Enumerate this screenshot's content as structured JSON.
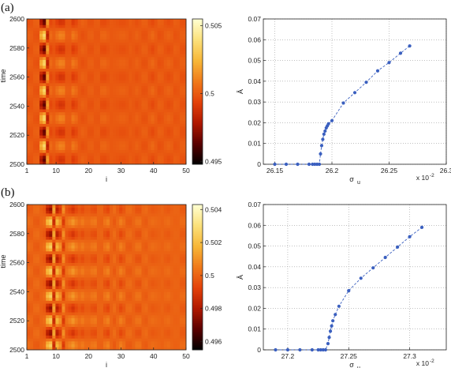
{
  "panel_labels": [
    "(a)",
    "(b)"
  ],
  "colormap_stops": [
    "#000000",
    "#5a0000",
    "#b01800",
    "#e4420a",
    "#f07a1a",
    "#f7b738",
    "#fbe07a",
    "#ffffd2"
  ],
  "chart_data": [
    {
      "id": "a-heatmap",
      "type": "heatmap",
      "xlabel": "i",
      "ylabel": "time",
      "xlim": [
        1,
        50
      ],
      "ylim": [
        2500,
        2600
      ],
      "xticks": [
        "1",
        "10",
        "20",
        "30",
        "40",
        "50"
      ],
      "xtick_values": [
        1,
        10,
        20,
        30,
        40,
        50
      ],
      "yticks": [
        "2500",
        "2520",
        "2540",
        "2560",
        "2580",
        "2600"
      ],
      "ytick_values": [
        2500,
        2520,
        2540,
        2560,
        2580,
        2600
      ],
      "color_range": [
        0.4948,
        0.5055
      ],
      "colorbar_ticks": [
        "0.505",
        "0.5",
        "0.495"
      ],
      "colorbar_tick_values": [
        0.505,
        0.5,
        0.495
      ],
      "pattern": {
        "base": 0.5,
        "period_time": 19,
        "columns": [
          {
            "i": 6,
            "amp": 0.0055
          },
          {
            "i": 7,
            "amp": -0.0055
          },
          {
            "i": 8,
            "amp": 0.0035
          },
          {
            "i": 9,
            "amp": -0.0015
          },
          {
            "i": 10,
            "amp": 0.0012
          },
          {
            "i": 12,
            "amp": 0.001
          },
          {
            "i": 15,
            "amp": 0.0007
          },
          {
            "i": 24,
            "amp": 0.0004
          },
          {
            "i": 28,
            "amp": 0.0003
          },
          {
            "i": 32,
            "amp": 0.0003
          },
          {
            "i": 40,
            "amp": 0.0002
          },
          {
            "i": 46,
            "amp": 0.0002
          }
        ]
      }
    },
    {
      "id": "a-line",
      "type": "line",
      "xlabel": "σ",
      "xlabel_sub": "u",
      "ylabel": "Ā",
      "xlim": [
        26.14,
        26.3
      ],
      "ylim": [
        0,
        0.07
      ],
      "xticks": [
        "26.15",
        "26.2",
        "26.25",
        "26.3"
      ],
      "xtick_values": [
        26.15,
        26.2,
        26.25,
        26.3
      ],
      "yticks": [
        "0",
        "0.01",
        "0.02",
        "0.03",
        "0.04",
        "0.05",
        "0.06",
        "0.07"
      ],
      "ytick_values": [
        0,
        0.01,
        0.02,
        0.03,
        0.04,
        0.05,
        0.06,
        0.07
      ],
      "multiplier": "x 10",
      "multiplier_exp": "-2",
      "grid": true,
      "color": "#3a5fbf",
      "x": [
        26.15,
        26.16,
        26.17,
        26.18,
        26.183,
        26.185,
        26.187,
        26.189,
        26.19,
        26.191,
        26.192,
        26.193,
        26.194,
        26.195,
        26.196,
        26.197,
        26.2,
        26.21,
        26.22,
        26.23,
        26.24,
        26.25,
        26.26,
        26.268
      ],
      "y": [
        0,
        0,
        0,
        0,
        0,
        0,
        0,
        0,
        0.005,
        0.009,
        0.012,
        0.0145,
        0.016,
        0.0175,
        0.0185,
        0.0195,
        0.021,
        0.0295,
        0.0345,
        0.0395,
        0.045,
        0.049,
        0.0535,
        0.057
      ]
    },
    {
      "id": "b-heatmap",
      "type": "heatmap",
      "xlabel": "i",
      "ylabel": "time",
      "xlim": [
        1,
        50
      ],
      "ylim": [
        2500,
        2600
      ],
      "xticks": [
        "1",
        "10",
        "20",
        "30",
        "40",
        "50"
      ],
      "xtick_values": [
        1,
        10,
        20,
        30,
        40,
        50
      ],
      "yticks": [
        "2500",
        "2520",
        "2540",
        "2560",
        "2580",
        "2600"
      ],
      "ytick_values": [
        2500,
        2520,
        2540,
        2560,
        2580,
        2600
      ],
      "color_range": [
        0.4955,
        0.5043
      ],
      "colorbar_ticks": [
        "0.504",
        "0.502",
        "0.5",
        "0.498",
        "0.496"
      ],
      "colorbar_tick_values": [
        0.504,
        0.502,
        0.5,
        0.498,
        0.496
      ],
      "pattern": {
        "base": 0.5,
        "period_time": 17,
        "columns": [
          {
            "i": 8,
            "amp": 0.0045
          },
          {
            "i": 9,
            "amp": -0.0045
          },
          {
            "i": 10,
            "amp": 0.0035
          },
          {
            "i": 12,
            "amp": -0.0015
          },
          {
            "i": 13,
            "amp": 0.0012
          },
          {
            "i": 15,
            "amp": 0.001
          },
          {
            "i": 18,
            "amp": 0.0008
          },
          {
            "i": 22,
            "amp": 0.0006
          },
          {
            "i": 26,
            "amp": 0.0005
          },
          {
            "i": 30,
            "amp": 0.0004
          },
          {
            "i": 36,
            "amp": 0.0003
          },
          {
            "i": 42,
            "amp": 0.0003
          },
          {
            "i": 47,
            "amp": 0.0002
          }
        ]
      }
    },
    {
      "id": "b-line",
      "type": "line",
      "xlabel": "σ",
      "xlabel_sub": "u",
      "ylabel": "Ā",
      "xlim": [
        27.18,
        27.33
      ],
      "ylim": [
        0,
        0.07
      ],
      "xticks": [
        "27.2",
        "27.25",
        "27.3"
      ],
      "xtick_values": [
        27.2,
        27.25,
        27.3
      ],
      "yticks": [
        "0",
        "0.01",
        "0.02",
        "0.03",
        "0.04",
        "0.05",
        "0.06",
        "0.07"
      ],
      "ytick_values": [
        0,
        0.01,
        0.02,
        0.03,
        0.04,
        0.05,
        0.06,
        0.07
      ],
      "multiplier": "x 10",
      "multiplier_exp": "-2",
      "grid": true,
      "color": "#3a5fbf",
      "x": [
        27.19,
        27.2,
        27.21,
        27.22,
        27.225,
        27.227,
        27.229,
        27.231,
        27.233,
        27.234,
        27.235,
        27.236,
        27.237,
        27.239,
        27.242,
        27.25,
        27.26,
        27.27,
        27.28,
        27.29,
        27.3,
        27.31
      ],
      "y": [
        0,
        0,
        0,
        0,
        0,
        0,
        0,
        0,
        0.003,
        0.006,
        0.009,
        0.0115,
        0.014,
        0.017,
        0.021,
        0.0285,
        0.0345,
        0.0395,
        0.0445,
        0.0495,
        0.0545,
        0.059
      ]
    }
  ]
}
